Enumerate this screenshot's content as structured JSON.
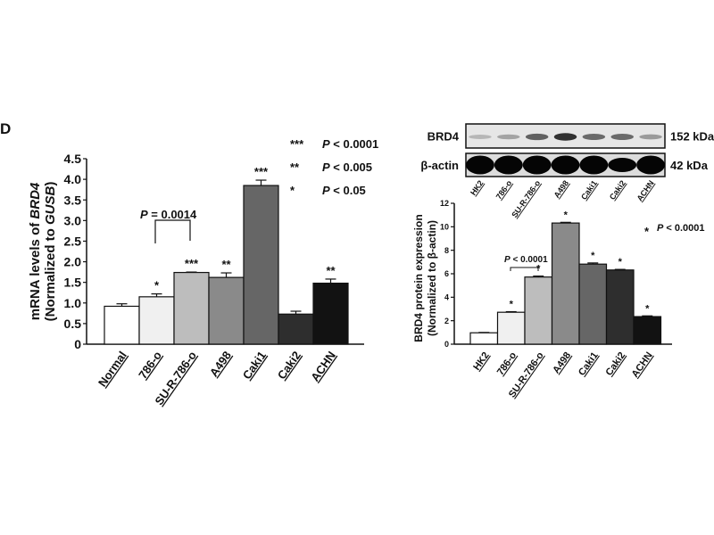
{
  "panel_label": "D",
  "chart_data": [
    {
      "type": "bar",
      "title": "",
      "ylabel_line1": "mRNA levels of ",
      "ylabel_gene": "BRD4",
      "ylabel_line2": "(Normalized to ",
      "ylabel_ref": "GUSB",
      "ylabel_close": ")",
      "xlabel": "",
      "ylim": [
        0,
        4.5
      ],
      "yticks": [
        0,
        0.5,
        1.0,
        1.5,
        2.0,
        2.5,
        3.0,
        3.5,
        4.0,
        4.5
      ],
      "ytick_labels": [
        "0",
        "0.5",
        "1.0",
        "1.5",
        "2.0",
        "2.5",
        "3.0",
        "3.5",
        "4.0",
        "4.5"
      ],
      "categories": [
        "Normal",
        "786-o",
        "SU-R-786-o",
        "A498",
        "Caki1",
        "Caki2",
        "ACHN"
      ],
      "values": [
        0.92,
        1.15,
        1.74,
        1.62,
        3.85,
        0.73,
        1.48
      ],
      "errors": [
        0.06,
        0.07,
        0.01,
        0.11,
        0.13,
        0.07,
        0.1
      ],
      "significance": [
        "",
        "*",
        "***",
        "**",
        "***",
        "",
        "**"
      ],
      "colors": [
        "#ffffff",
        "#f0f0f0",
        "#bdbdbd",
        "#8a8a8a",
        "#666666",
        "#2e2e2e",
        "#121212"
      ],
      "comparison": {
        "from": "786-o",
        "to": "SU-R-786-o",
        "label_p": "P",
        "label_rest": " = 0.0014"
      },
      "legend": [
        {
          "stars": "***",
          "p": "P",
          "text": " < 0.0001"
        },
        {
          "stars": "**",
          "p": "P",
          "text": " < 0.005"
        },
        {
          "stars": "*",
          "p": "P",
          "text": " < 0.05"
        }
      ]
    },
    {
      "type": "bar",
      "title": "",
      "ylabel_line1": "BRD4 protein expression",
      "ylabel_line2": "(Normalized to β-actin)",
      "xlabel": "",
      "ylim": [
        0,
        12
      ],
      "yticks": [
        0,
        2,
        4,
        6,
        8,
        10,
        12
      ],
      "ytick_labels": [
        "0",
        "2",
        "4",
        "6",
        "8",
        "10",
        "12"
      ],
      "categories": [
        "HK2",
        "786-o",
        "SU-R-786-o",
        "A498",
        "Caki1",
        "Caki2",
        "ACHN"
      ],
      "values": [
        0.97,
        2.72,
        5.72,
        10.32,
        6.82,
        6.32,
        2.35
      ],
      "errors": [
        0.03,
        0.05,
        0.08,
        0.06,
        0.1,
        0.05,
        0.06
      ],
      "significance": [
        "",
        "*",
        "*",
        "*",
        "*",
        "*",
        "*"
      ],
      "colors": [
        "#ffffff",
        "#f0f0f0",
        "#bdbdbd",
        "#8a8a8a",
        "#666666",
        "#2e2e2e",
        "#121212"
      ],
      "comparison": {
        "from": "786-o",
        "to": "SU-R-786-o",
        "label_p": "P",
        "label_rest": " < 0.0001"
      },
      "legend": [
        {
          "stars": "*",
          "p": "P",
          "text": " < 0.0001"
        }
      ]
    }
  ],
  "western_blot": {
    "rows": [
      {
        "label": "BRD4",
        "size": "152 kDa",
        "intensity": [
          0.2,
          0.3,
          0.65,
          0.9,
          0.6,
          0.6,
          0.35
        ]
      },
      {
        "label": "β-actin",
        "size": "42 kDa",
        "intensity": [
          1,
          1,
          1,
          1,
          1,
          1,
          1
        ]
      }
    ],
    "lanes": [
      "HK2",
      "786-o",
      "SU-R-786-o",
      "A498",
      "Caki1",
      "Caki2",
      "ACHN"
    ]
  }
}
